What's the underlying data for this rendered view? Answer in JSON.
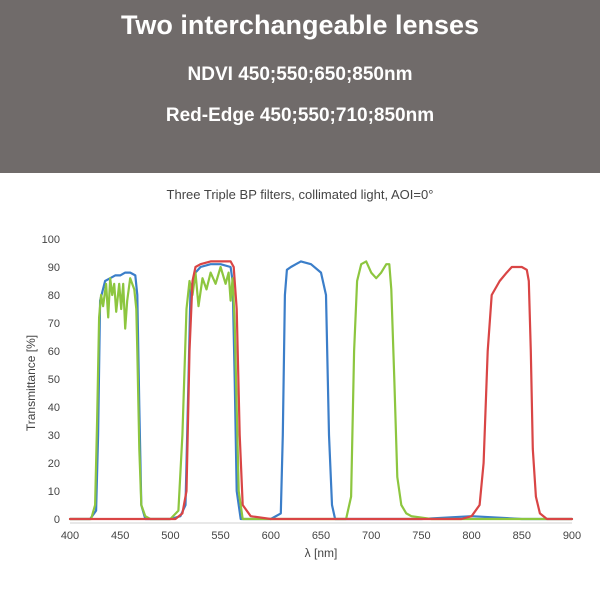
{
  "header": {
    "title": "Two interchangeable lenses",
    "line1": "NDVI 450;550;650;850nm",
    "line2": "Red-Edge 450;550;710;850nm"
  },
  "chart_data": {
    "type": "line",
    "title": "Three Triple BP filters, collimated light, AOI=0°",
    "xlabel": "λ [nm]",
    "ylabel": "Transmittance [%]",
    "xlim": [
      400,
      900
    ],
    "ylim": [
      0,
      100
    ],
    "xticks": [
      400,
      450,
      500,
      550,
      600,
      650,
      700,
      750,
      800,
      850,
      900
    ],
    "yticks": [
      0,
      10,
      20,
      30,
      40,
      50,
      60,
      70,
      80,
      90,
      100
    ],
    "grid": false,
    "legend": "none",
    "series": [
      {
        "color": "#3b7ec9",
        "x": [
          400,
          420,
          426,
          428,
          430,
          435,
          440,
          445,
          450,
          455,
          460,
          465,
          467,
          469,
          471,
          475,
          500,
          510,
          515,
          518,
          520,
          525,
          530,
          540,
          550,
          560,
          562,
          564,
          566,
          570,
          600,
          610,
          612,
          614,
          616,
          620,
          625,
          630,
          640,
          650,
          655,
          658,
          661,
          664,
          670,
          700,
          750,
          800,
          850,
          900
        ],
        "y": [
          0,
          0,
          3,
          30,
          78,
          85,
          86,
          87,
          87,
          88,
          88,
          87,
          80,
          40,
          5,
          0,
          0,
          1,
          5,
          50,
          82,
          88,
          90,
          91,
          91,
          90,
          85,
          50,
          10,
          0,
          0,
          2,
          30,
          80,
          89,
          90,
          91,
          92,
          91,
          88,
          80,
          30,
          5,
          0,
          0,
          0,
          0,
          1,
          0,
          0
        ]
      },
      {
        "color": "#8dc63f",
        "x": [
          400,
          421,
          425,
          427,
          429,
          431,
          433,
          436,
          438,
          440,
          442,
          444,
          446,
          449,
          451,
          453,
          455,
          457,
          460,
          462,
          464,
          466,
          467,
          469,
          471,
          475,
          480,
          500,
          508,
          512,
          516,
          519,
          522,
          525,
          528,
          532,
          536,
          540,
          545,
          550,
          555,
          558,
          560,
          562,
          564,
          566,
          568,
          572,
          580,
          650,
          675,
          680,
          683,
          686,
          690,
          695,
          700,
          705,
          710,
          715,
          718,
          720,
          723,
          726,
          730,
          735,
          740,
          760,
          800,
          850,
          900
        ],
        "y": [
          0,
          0,
          5,
          35,
          72,
          80,
          76,
          84,
          72,
          86,
          80,
          84,
          74,
          84,
          75,
          84,
          68,
          78,
          86,
          84,
          82,
          75,
          60,
          25,
          5,
          1,
          0,
          0,
          3,
          30,
          75,
          85,
          80,
          88,
          76,
          86,
          82,
          88,
          84,
          90,
          84,
          88,
          78,
          86,
          70,
          40,
          10,
          0,
          0,
          0,
          0,
          8,
          60,
          85,
          91,
          92,
          88,
          86,
          88,
          91,
          91,
          82,
          50,
          15,
          5,
          2,
          1,
          0,
          0,
          0,
          0
        ]
      },
      {
        "color": "#d94545",
        "x": [
          400,
          505,
          512,
          516,
          519,
          522,
          525,
          530,
          540,
          550,
          560,
          563,
          566,
          569,
          572,
          580,
          600,
          650,
          700,
          750,
          790,
          800,
          808,
          812,
          816,
          820,
          828,
          835,
          840,
          845,
          850,
          855,
          857,
          859,
          861,
          864,
          868,
          875,
          900
        ],
        "y": [
          0,
          0,
          2,
          10,
          60,
          85,
          90,
          91,
          92,
          92,
          92,
          90,
          75,
          30,
          5,
          1,
          0,
          0,
          0,
          0,
          0,
          1,
          5,
          20,
          60,
          80,
          85,
          88,
          90,
          90,
          90,
          89,
          85,
          60,
          25,
          8,
          2,
          0,
          0
        ]
      }
    ]
  }
}
